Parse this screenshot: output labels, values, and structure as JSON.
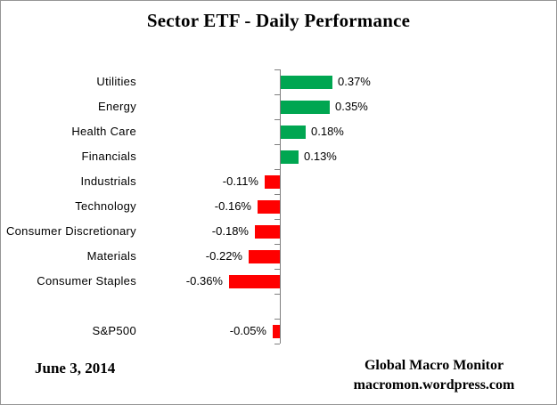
{
  "title": "Sector ETF - Daily Performance",
  "footer": {
    "date": "June 3, 2014",
    "brand_line1": "Global Macro Monitor",
    "brand_line2": "macromon.wordpress.com"
  },
  "colors": {
    "positive": "#00A651",
    "negative": "#FF0000",
    "axis": "#808080",
    "border": "#969696"
  },
  "chart_data": {
    "type": "bar",
    "orientation": "horizontal",
    "title": "Sector ETF - Daily Performance",
    "categories": [
      "Utilities",
      "Energy",
      "Health Care",
      "Financials",
      "Industrials",
      "Technology",
      "Consumer Discretionary",
      "Materials",
      "Consumer Staples",
      "",
      "S&P500"
    ],
    "values": [
      0.37,
      0.35,
      0.18,
      0.13,
      -0.11,
      -0.16,
      -0.18,
      -0.22,
      -0.36,
      null,
      -0.05
    ],
    "value_labels": [
      "0.37%",
      "0.35%",
      "0.18%",
      "0.13%",
      "-0.11%",
      "-0.16%",
      "-0.18%",
      "-0.22%",
      "-0.36%",
      "",
      "-0.05%"
    ],
    "unit": "%",
    "xlim": [
      -1.0,
      1.0
    ],
    "grid": false,
    "legend": "none",
    "value_label_position": "outside-end"
  }
}
